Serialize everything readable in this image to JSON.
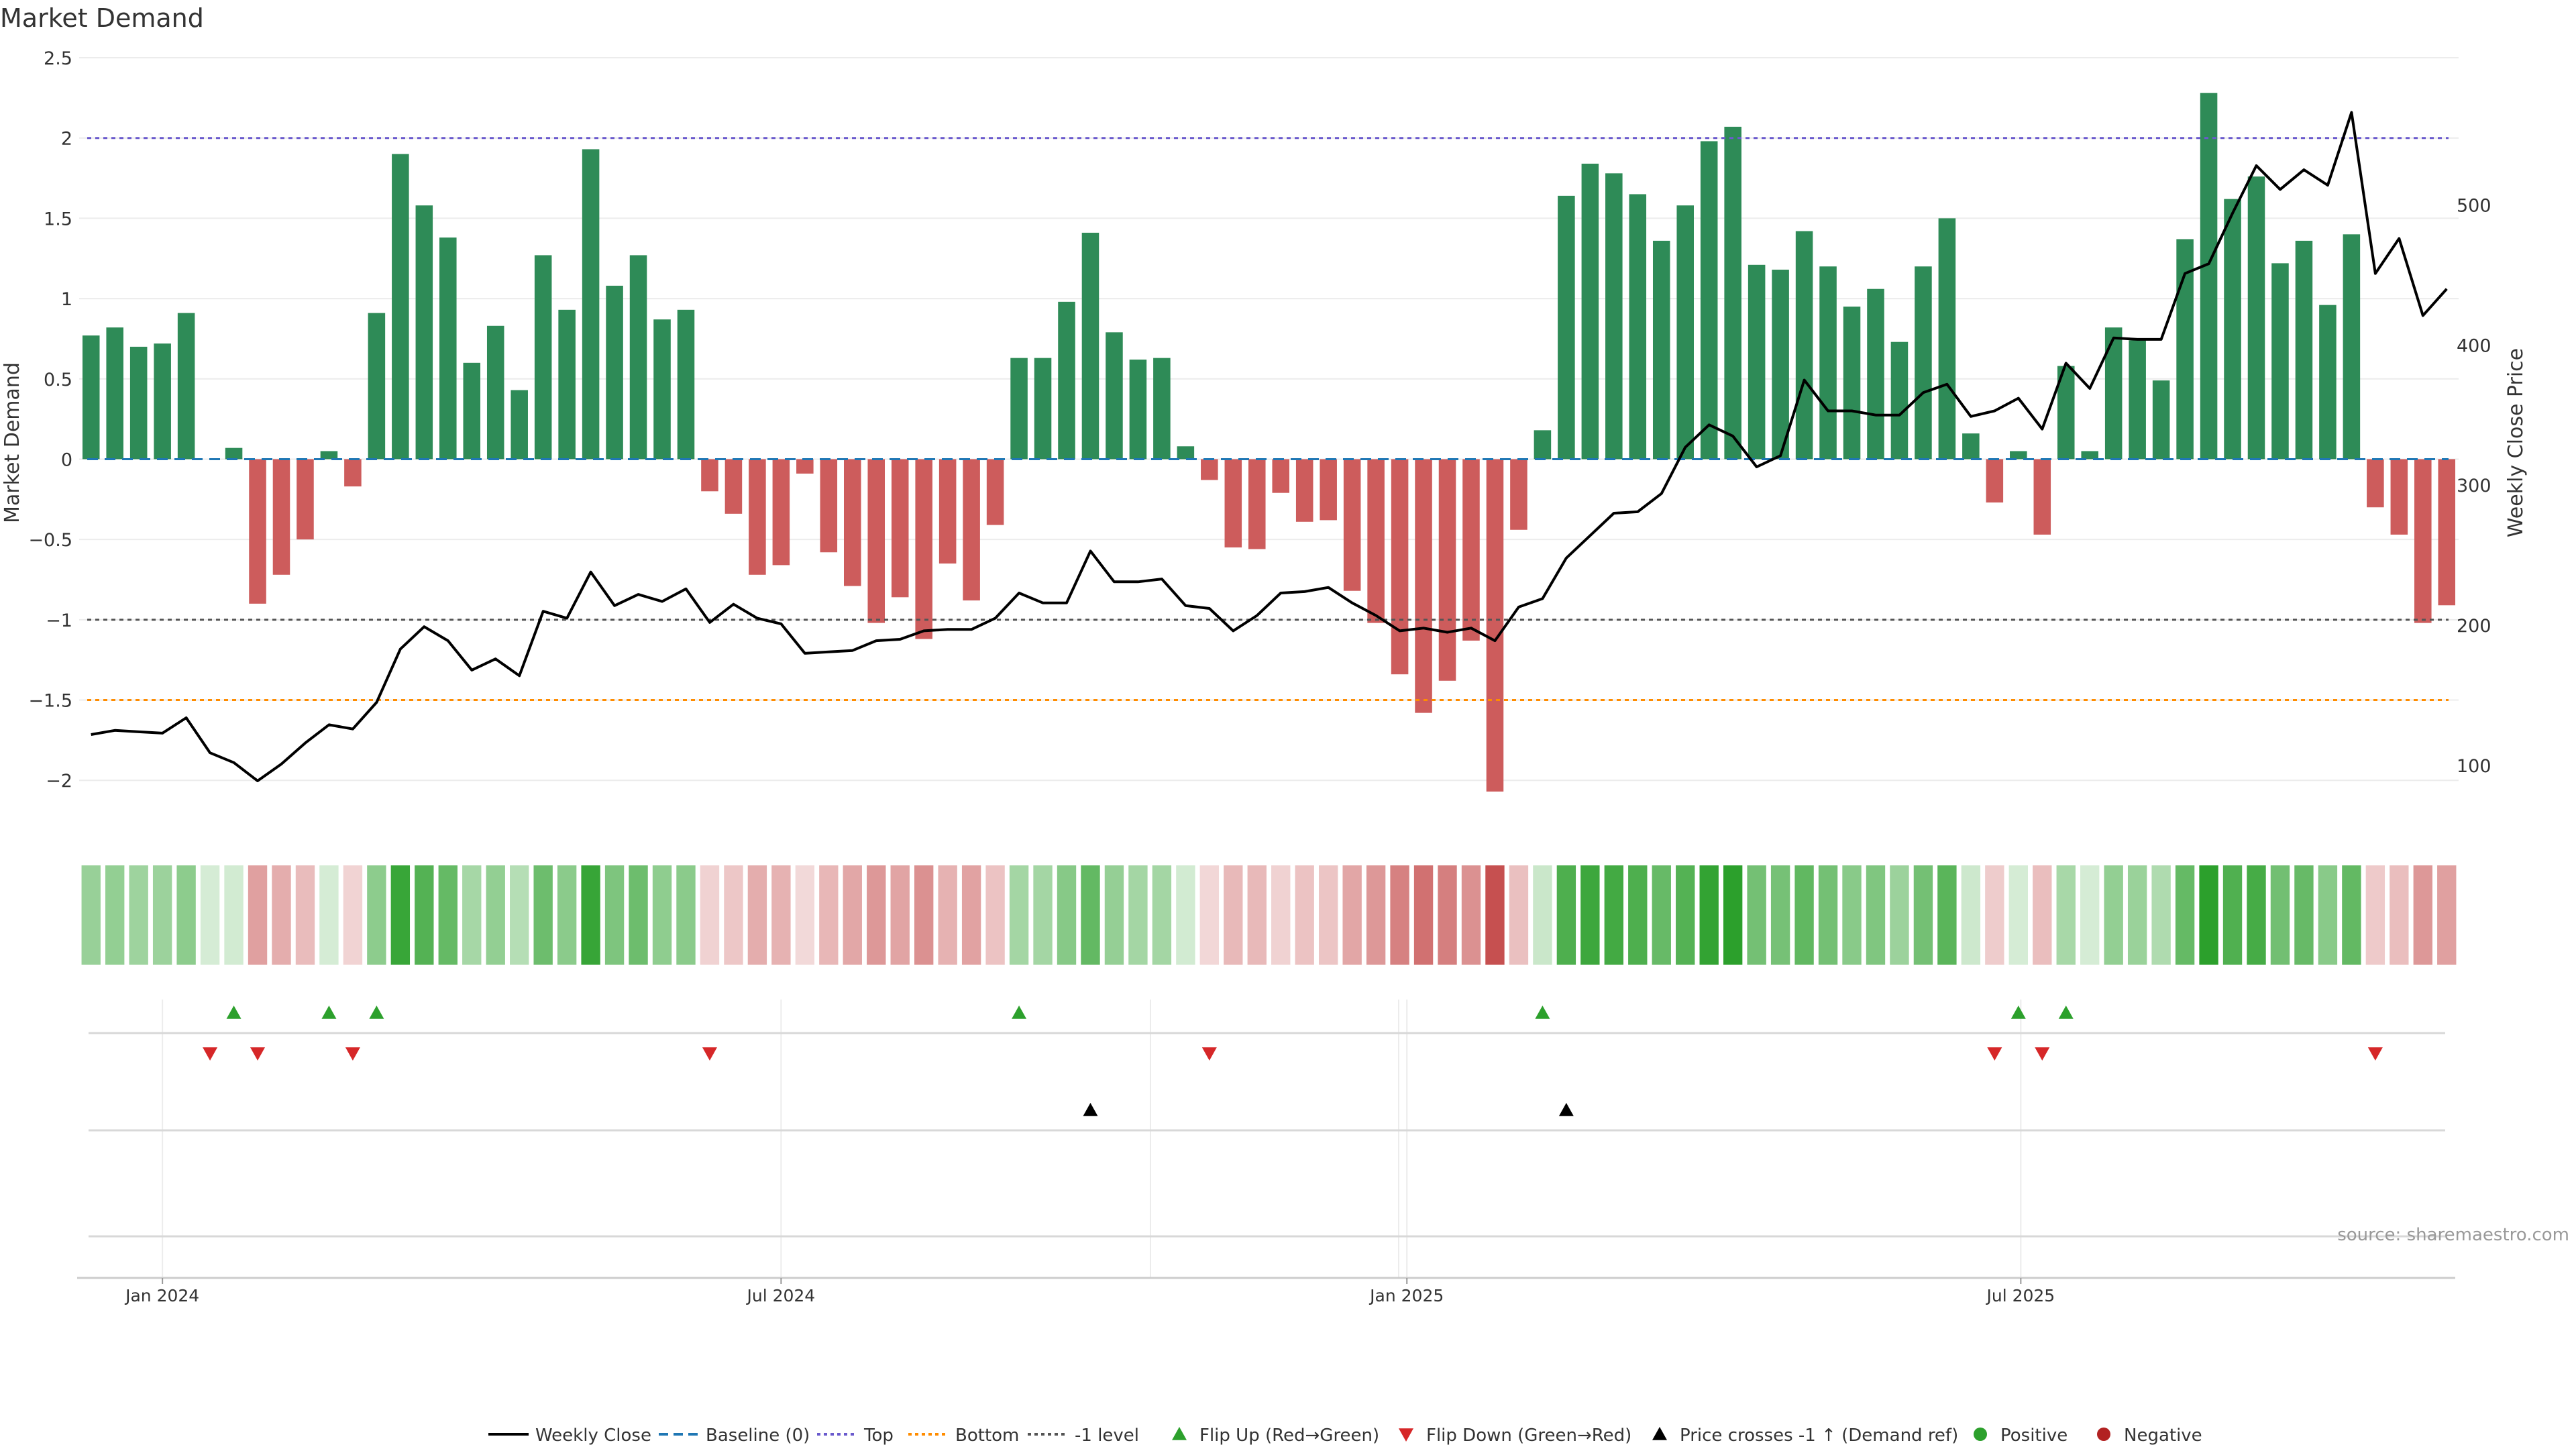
{
  "chart_data": {
    "type": "bar",
    "title": "Market Demand",
    "ylabel_left": "Market Demand",
    "ylabel_right": "Weekly Close Price",
    "ylim": [
      -2.3,
      2.5
    ],
    "y_ticks": [
      2.5,
      2,
      1.5,
      1,
      0.5,
      0,
      -0.5,
      -1,
      -1.5,
      -2
    ],
    "y_tick_labels": [
      "2.5",
      "2",
      "1.5",
      "1",
      "0.5",
      "0",
      "−0.5",
      "−1",
      "−1.5",
      "−2"
    ],
    "price_ylim": [
      55,
      605
    ],
    "price_ticks": [
      100,
      200,
      300,
      400,
      500
    ],
    "x_tick_labels": [
      {
        "label": "Jan 2024",
        "index": 3
      },
      {
        "label": "Jul 2024",
        "index": 29
      },
      {
        "label": "Jan 2025",
        "index": 55.3
      },
      {
        "label": "Jul 2025",
        "index": 81.1
      }
    ],
    "reference_lines": {
      "top": 2,
      "bottom": -1.5,
      "minus_one": -1,
      "baseline": 0
    },
    "demand": [
      0.77,
      0.82,
      0.7,
      0.72,
      0.91,
      0,
      0.07,
      -0.9,
      -0.72,
      -0.5,
      0.05,
      -0.17,
      0.91,
      1.9,
      1.58,
      1.38,
      0.6,
      0.83,
      0.43,
      1.27,
      0.93,
      1.93,
      1.08,
      1.27,
      0.87,
      0.93,
      -0.2,
      -0.34,
      -0.72,
      -0.66,
      -0.09,
      -0.58,
      -0.79,
      -1.02,
      -0.86,
      -1.12,
      -0.65,
      -0.88,
      -0.41,
      0.63,
      0.63,
      0.98,
      1.41,
      0.79,
      0.62,
      0.63,
      0.08,
      -0.13,
      -0.55,
      -0.56,
      -0.21,
      -0.39,
      -0.38,
      -0.82,
      -1.02,
      -1.34,
      -1.58,
      -1.38,
      -1.13,
      -2.07,
      -0.44,
      0.18,
      1.64,
      1.84,
      1.78,
      1.65,
      1.36,
      1.58,
      1.98,
      2.07,
      1.21,
      1.18,
      1.42,
      1.2,
      0.95,
      1.06,
      0.73,
      1.2,
      1.5,
      0.16,
      -0.27,
      0.05,
      -0.47,
      0.58,
      0.05,
      0.82,
      0.74,
      0.49,
      1.37,
      2.28,
      1.62,
      1.76,
      1.22,
      1.36,
      0.96,
      1.4,
      -0.3,
      -0.47,
      -1.02,
      -0.91
    ],
    "weekly_close": [
      122,
      125,
      124,
      123,
      134,
      109,
      102,
      89,
      101,
      116,
      129,
      126,
      145,
      183,
      199,
      189,
      168,
      176,
      164,
      210,
      205,
      238,
      214,
      222,
      217,
      226,
      202,
      215,
      205,
      201,
      180,
      181,
      182,
      189,
      190,
      196,
      197,
      197,
      205,
      223,
      216,
      216,
      253,
      231,
      231,
      233,
      214,
      212,
      196,
      207,
      223,
      224,
      227,
      216,
      207,
      196,
      198,
      195,
      198,
      189,
      213,
      219,
      248,
      264,
      280,
      281,
      294,
      327,
      343,
      335,
      313,
      321,
      375,
      353,
      353,
      350,
      350,
      366,
      372,
      349,
      353,
      362,
      340,
      387,
      369,
      405,
      404,
      404,
      451,
      458,
      494,
      528,
      511,
      525,
      514,
      566,
      451,
      476,
      421,
      440
    ],
    "flip_up": [
      6,
      10,
      12,
      39,
      61,
      81,
      83
    ],
    "flip_down": [
      5,
      7,
      11,
      26,
      47,
      80,
      82,
      96
    ],
    "price_cross": [
      42,
      62
    ],
    "source": "source: sharemaestro.com",
    "legend": [
      "Weekly Close",
      "Baseline (0)",
      "Top",
      "Bottom",
      "-1 level",
      "Flip Up (Red→Green)",
      "Flip Down (Green→Red)",
      "Price crosses -1 ↑ (Demand ref)",
      "Positive",
      "Negative"
    ],
    "colors": {
      "positive": "#2e8b57",
      "negative": "#cd5c5c",
      "price": "#000000",
      "baseline": "#1f77b4",
      "top": "#6a5acd",
      "bottom": "#ff8c00",
      "minus_one": "#555555",
      "flip_up": "#2ca02c",
      "flip_down": "#d62728",
      "price_cross": "#000000"
    }
  }
}
